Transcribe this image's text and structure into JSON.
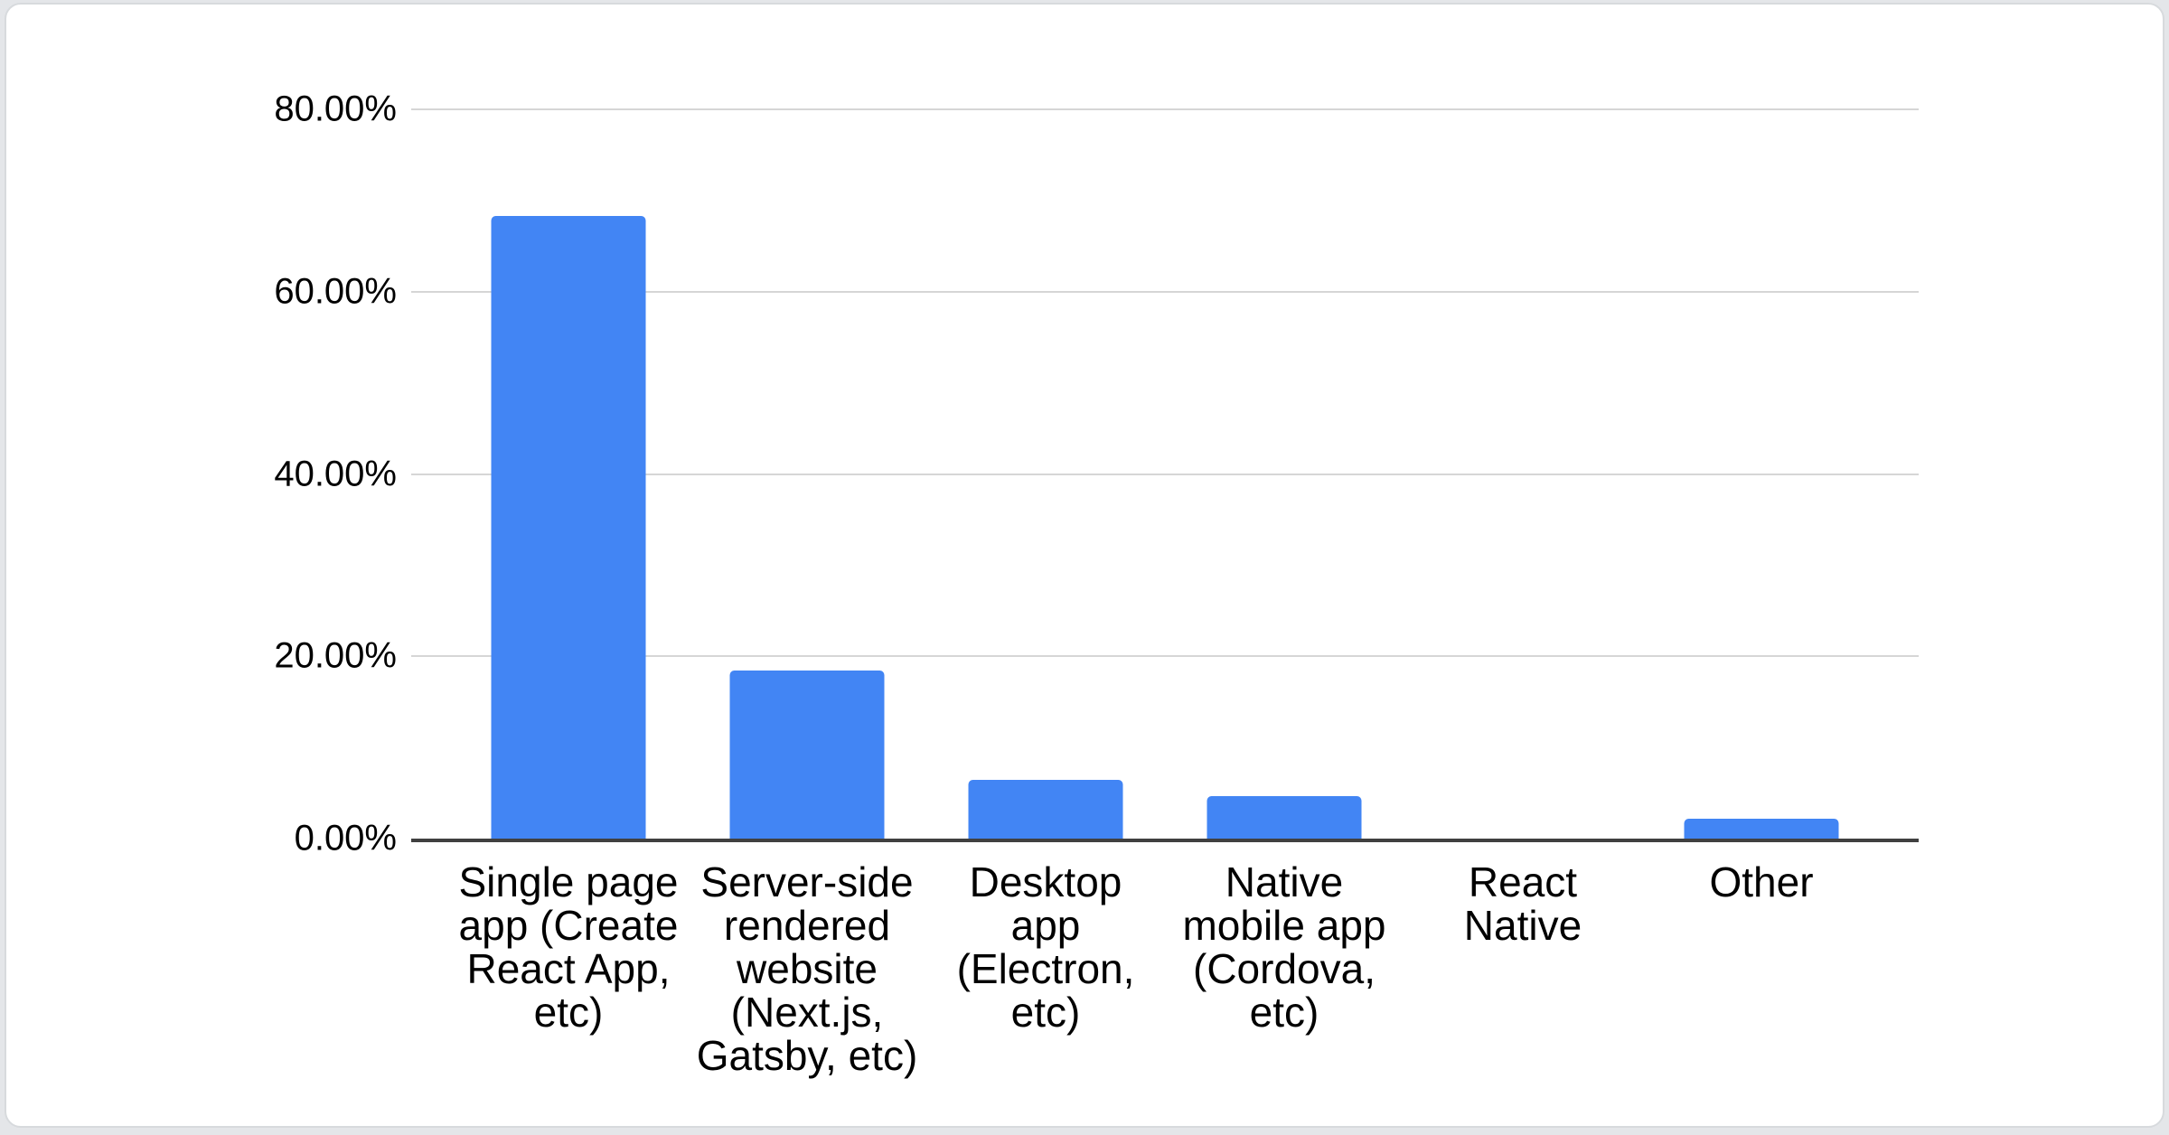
{
  "page": {
    "background_color": "#e4e6e9",
    "card_background_color": "#ffffff",
    "card_border_color": "#d7dadd"
  },
  "chart_data": {
    "type": "bar",
    "title": "",
    "xlabel": "",
    "ylabel": "",
    "legend_position": "none",
    "grid": true,
    "ylim": [
      0,
      80
    ],
    "ytick_step": 20,
    "yticks": [
      "80.00%",
      "60.00%",
      "40.00%",
      "20.00%",
      "0.00%"
    ],
    "categories": [
      "Single page app (Create React App, etc)",
      "Server-side rendered website (Next.js, Gatsby, etc)",
      "Desktop app (Electron, etc)",
      "Native mobile app (Cordova, etc)",
      "React Native",
      "Other"
    ],
    "category_lines": [
      [
        "Single page",
        "app (Create",
        "React App,",
        "etc)"
      ],
      [
        "Server-side",
        "rendered",
        "website",
        "(Next.js,",
        "Gatsby, etc)"
      ],
      [
        "Desktop",
        "app",
        "(Electron,",
        "etc)"
      ],
      [
        "Native",
        "mobile app",
        "(Cordova,",
        "etc)"
      ],
      [
        "React",
        "Native"
      ],
      [
        "Other"
      ]
    ],
    "category_ids": [
      "single-page-app",
      "server-side-rendered-website",
      "desktop-app",
      "native-mobile-app",
      "react-native",
      "other"
    ],
    "values": [
      68.3,
      18.4,
      6.4,
      4.7,
      0,
      2.2
    ],
    "value_unit": "%",
    "bar_color": "#4285f4",
    "gridline_color": "#d6d6d6",
    "axis_line_color": "#404040",
    "label_color": "#000000"
  }
}
